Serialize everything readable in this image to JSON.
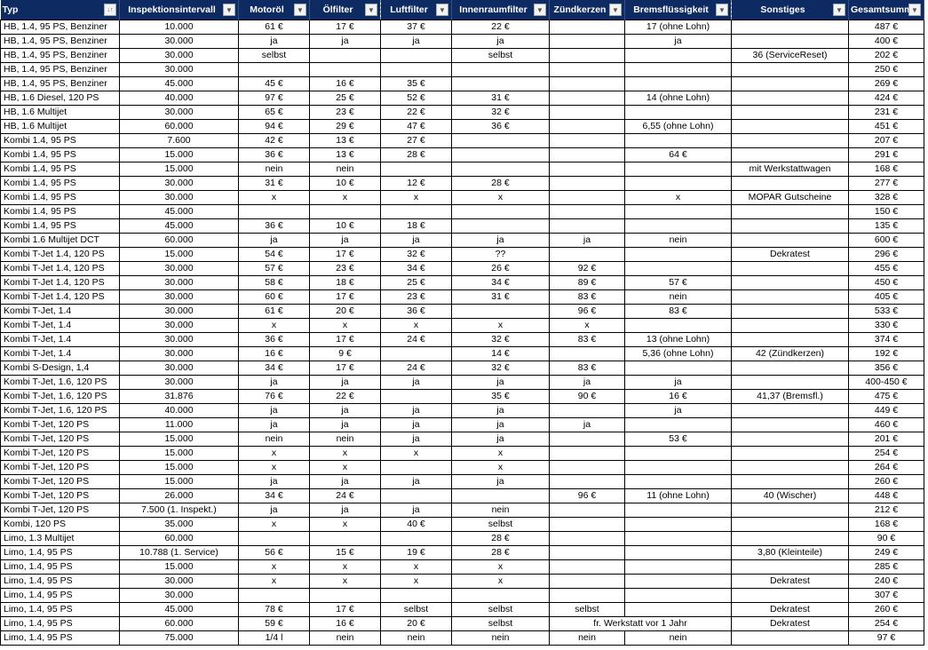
{
  "colors": {
    "header_bg": "#0e2a63",
    "header_text": "#ffffff",
    "grid": "#000000"
  },
  "columns": [
    {
      "label": "Typ",
      "icon": "sort-filter-icon"
    },
    {
      "label": "Inspektionsintervall",
      "icon": "dropdown-arrow-icon"
    },
    {
      "label": "Motoröl",
      "icon": "dropdown-arrow-icon"
    },
    {
      "label": "Ölfilter",
      "icon": "dropdown-arrow-icon"
    },
    {
      "label": "Luftfilter",
      "icon": "dropdown-arrow-icon"
    },
    {
      "label": "Innenraumfilter",
      "icon": "dropdown-arrow-icon"
    },
    {
      "label": "Zündkerzen",
      "icon": "dropdown-arrow-icon"
    },
    {
      "label": "Bremsflüssigkeit",
      "icon": "dropdown-arrow-icon"
    },
    {
      "label": "Sonstiges",
      "icon": "dropdown-arrow-icon"
    },
    {
      "label": "Gesamtsumme",
      "icon": "dropdown-arrow-icon"
    }
  ],
  "rows": [
    [
      "HB, 1.4, 95 PS, Benziner",
      "10.000",
      "61 €",
      "17 €",
      "37 €",
      "22 €",
      "",
      "17 (ohne Lohn)",
      "",
      "487 €"
    ],
    [
      "HB, 1.4, 95 PS, Benziner",
      "30.000",
      "ja",
      "ja",
      "ja",
      "ja",
      "",
      "ja",
      "",
      "400 €"
    ],
    [
      "HB, 1.4, 95 PS, Benziner",
      "30.000",
      "selbst",
      "",
      "",
      "selbst",
      "",
      "",
      "36 (ServiceReset)",
      "202 €"
    ],
    [
      "HB, 1.4, 95 PS, Benziner",
      "30.000",
      "",
      "",
      "",
      "",
      "",
      "",
      "",
      "250 €"
    ],
    [
      "HB, 1.4, 95 PS, Benziner",
      "45.000",
      "45 €",
      "16 €",
      "35 €",
      "",
      "",
      "",
      "",
      "269 €"
    ],
    [
      "HB, 1.6 Diesel, 120 PS",
      "40.000",
      "97 €",
      "25 €",
      "52 €",
      "31 €",
      "",
      "14 (ohne Lohn)",
      "",
      "424 €"
    ],
    [
      "HB, 1.6 Multijet",
      "30.000",
      "65 €",
      "23 €",
      "22 €",
      "32 €",
      "",
      "",
      "",
      "231 €"
    ],
    [
      "HB, 1.6 Multijet",
      "60.000",
      "94 €",
      "29 €",
      "47 €",
      "36 €",
      "",
      "6,55 (ohne Lohn)",
      "",
      "451 €"
    ],
    [
      "Kombi 1.4, 95 PS",
      "7.600",
      "42 €",
      "13 €",
      "27 €",
      "",
      "",
      "",
      "",
      "207 €"
    ],
    [
      "Kombi 1.4, 95 PS",
      "15.000",
      "36 €",
      "13 €",
      "28 €",
      "",
      "",
      "64 €",
      "",
      "291 €"
    ],
    [
      "Kombi 1.4, 95 PS",
      "15.000",
      "nein",
      "nein",
      "",
      "",
      "",
      "",
      "mit Werkstattwagen",
      "168 €"
    ],
    [
      "Kombi 1.4, 95 PS",
      "30.000",
      "31 €",
      "10 €",
      "12 €",
      "28 €",
      "",
      "",
      "",
      "277 €"
    ],
    [
      "Kombi 1.4, 95 PS",
      "30.000",
      "x",
      "x",
      "x",
      "x",
      "",
      "x",
      "MOPAR Gutscheine",
      "328 €"
    ],
    [
      "Kombi 1.4, 95 PS",
      "45.000",
      "",
      "",
      "",
      "",
      "",
      "",
      "",
      "150 €"
    ],
    [
      "Kombi 1.4, 95 PS",
      "45.000",
      "36 €",
      "10 €",
      "18 €",
      "",
      "",
      "",
      "",
      "135 €"
    ],
    [
      "Kombi 1.6 Multijet DCT",
      "60.000",
      "ja",
      "ja",
      "ja",
      "ja",
      "ja",
      "nein",
      "",
      "600 €"
    ],
    [
      "Kombi T-Jet 1.4, 120 PS",
      "15.000",
      "54 €",
      "17 €",
      "32 €",
      "??",
      "",
      "",
      "Dekratest",
      "296 €"
    ],
    [
      "Kombi T-Jet 1.4, 120 PS",
      "30.000",
      "57 €",
      "23 €",
      "34 €",
      "26 €",
      "92 €",
      "",
      "",
      "455 €"
    ],
    [
      "Kombi T-Jet 1.4, 120 PS",
      "30.000",
      "58 €",
      "18 €",
      "25 €",
      "34 €",
      "89 €",
      "57 €",
      "",
      "450 €"
    ],
    [
      "Kombi T-Jet 1.4, 120 PS",
      "30.000",
      "60 €",
      "17 €",
      "23 €",
      "31 €",
      "83 €",
      "nein",
      "",
      "405 €"
    ],
    [
      "Kombi T-Jet, 1.4",
      "30.000",
      "61 €",
      "20 €",
      "36 €",
      "",
      "96 €",
      "83 €",
      "",
      "533 €"
    ],
    [
      "Kombi T-Jet, 1.4",
      "30.000",
      "x",
      "x",
      "x",
      "x",
      "x",
      "",
      "",
      "330 €"
    ],
    [
      "Kombi T-Jet, 1.4",
      "30.000",
      "36 €",
      "17 €",
      "24 €",
      "32 €",
      "83 €",
      "13 (ohne Lohn)",
      "",
      "374 €"
    ],
    [
      "Kombi T-Jet, 1.4",
      "30.000",
      "16 €",
      "9 €",
      "",
      "14 €",
      "",
      "5,36 (ohne Lohn)",
      "42 (Zündkerzen)",
      "192 €"
    ],
    [
      "Kombi S-Design, 1,4",
      "30.000",
      "34 €",
      "17 €",
      "24 €",
      "32 €",
      "83 €",
      "",
      "",
      "356 €"
    ],
    [
      "Kombi T-Jet, 1.6, 120 PS",
      "30.000",
      "ja",
      "ja",
      "ja",
      "ja",
      "ja",
      "ja",
      "",
      "400-450 €"
    ],
    [
      "Kombi T-Jet, 1.6, 120 PS",
      "31.876",
      "76 €",
      "22 €",
      "",
      "35 €",
      "90 €",
      "16 €",
      "41,37 (Bremsfl.)",
      "475 €"
    ],
    [
      "Kombi T-Jet, 1.6, 120 PS",
      "40.000",
      "ja",
      "ja",
      "ja",
      "ja",
      "",
      "ja",
      "",
      "449 €"
    ],
    [
      "Kombi T-Jet, 120 PS",
      "11.000",
      "ja",
      "ja",
      "ja",
      "ja",
      "ja",
      "",
      "",
      "460 €"
    ],
    [
      "Kombi T-Jet, 120 PS",
      "15.000",
      "nein",
      "nein",
      "ja",
      "ja",
      "",
      "53 €",
      "",
      "201 €"
    ],
    [
      "Kombi T-Jet, 120 PS",
      "15.000",
      "x",
      "x",
      "x",
      "x",
      "",
      "",
      "",
      "254 €"
    ],
    [
      "Kombi T-Jet, 120 PS",
      "15.000",
      "x",
      "x",
      "",
      "x",
      "",
      "",
      "",
      "264 €"
    ],
    [
      "Kombi T-Jet, 120 PS",
      "15.000",
      "ja",
      "ja",
      "ja",
      "ja",
      "",
      "",
      "",
      "260 €"
    ],
    [
      "Kombi T-Jet, 120 PS",
      "26.000",
      "34 €",
      "24 €",
      "",
      "",
      "96 €",
      "11 (ohne Lohn)",
      "40 (Wischer)",
      "448 €"
    ],
    [
      "Kombi T-Jet, 120 PS",
      "7.500 (1. Inspekt.)",
      "ja",
      "ja",
      "ja",
      "nein",
      "",
      "",
      "",
      "212 €"
    ],
    [
      "Kombi, 120 PS",
      "35.000",
      "x",
      "x",
      "40 €",
      "selbst",
      "",
      "",
      "",
      "168 €"
    ],
    [
      "Limo, 1.3 Multijet",
      "60.000",
      "",
      "",
      "",
      "28 €",
      "",
      "",
      "",
      "90 €"
    ],
    [
      "Limo, 1.4, 95 PS",
      "10.788 (1. Service)",
      "56 €",
      "15 €",
      "19 €",
      "28 €",
      "",
      "",
      "3,80 (Kleinteile)",
      "249 €"
    ],
    [
      "Limo, 1.4, 95 PS",
      "15.000",
      "x",
      "x",
      "x",
      "x",
      "",
      "",
      "",
      "285 €"
    ],
    [
      "Limo, 1.4, 95 PS",
      "30.000",
      "x",
      "x",
      "x",
      "x",
      "",
      "",
      "Dekratest",
      "240 €"
    ],
    [
      "Limo, 1.4, 95 PS",
      "30.000",
      "",
      "",
      "",
      "",
      "",
      "",
      "",
      "307 €"
    ],
    [
      "Limo, 1.4, 95 PS",
      "45.000",
      "78 €",
      "17 €",
      "selbst",
      "selbst",
      "selbst",
      "",
      "Dekratest",
      "260 €"
    ],
    [
      "Limo, 1.4, 95 PS",
      "60.000",
      "59 €",
      "16 €",
      "20 €",
      "selbst",
      "fr. Werkstatt vor 1 Jahr",
      "",
      "Dekratest",
      "254 €"
    ],
    [
      "Limo, 1.4, 95 PS",
      "75.000",
      "1/4 l",
      "nein",
      "nein",
      "nein",
      "nein",
      "nein",
      "",
      "97 €"
    ]
  ]
}
